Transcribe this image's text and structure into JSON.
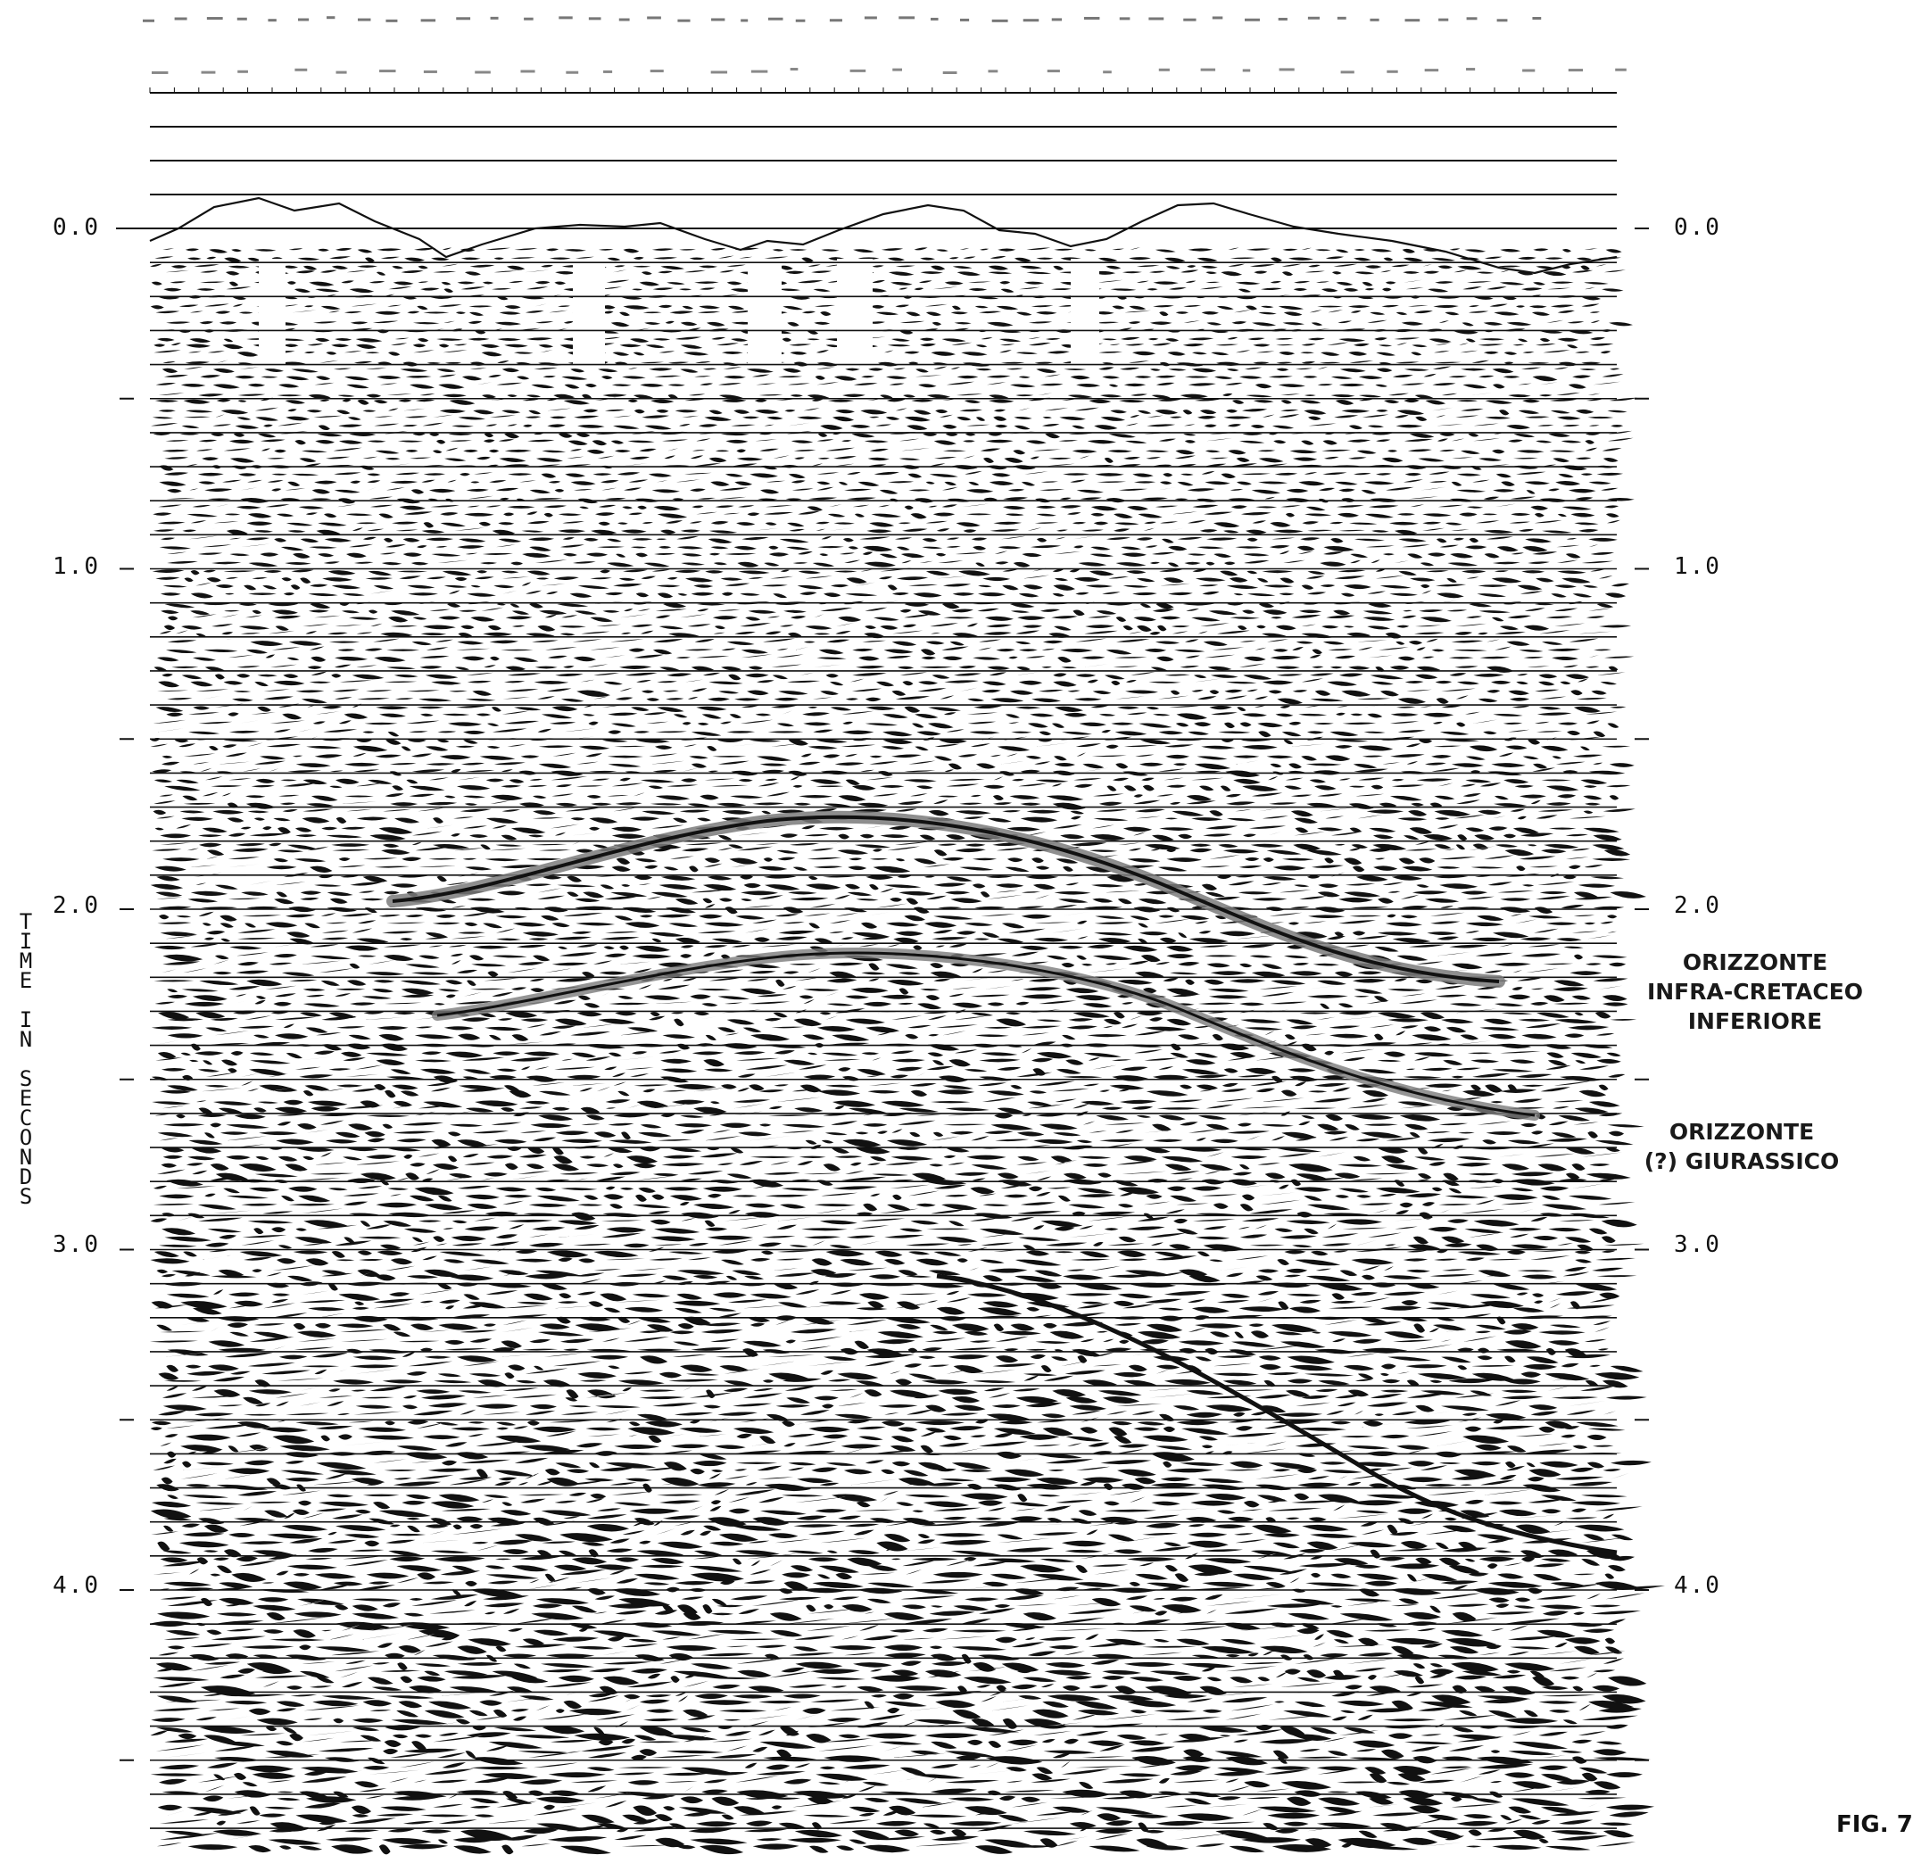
{
  "axis": {
    "title_letters": [
      "T",
      "I",
      "M",
      "E",
      "",
      "I",
      "N",
      "",
      "S",
      "E",
      "C",
      "O",
      "N",
      "D",
      "S"
    ],
    "ticks": [
      {
        "value": 0.0,
        "label": "0.0"
      },
      {
        "value": 0.5,
        "label": "-"
      },
      {
        "value": 1.0,
        "label": "1.0"
      },
      {
        "value": 1.5,
        "label": "-"
      },
      {
        "value": 2.0,
        "label": "2.0"
      },
      {
        "value": 2.5,
        "label": "-"
      },
      {
        "value": 3.0,
        "label": "3.0"
      },
      {
        "value": 3.5,
        "label": "-"
      },
      {
        "value": 4.0,
        "label": "4.0"
      },
      {
        "value": 4.5,
        "label": "-"
      }
    ],
    "ticks_left": [
      "0.0",
      "1.0",
      "2.0",
      "3.0",
      "4.0"
    ],
    "ticks_right": [
      "0.0",
      "1.0",
      "2.0",
      "3.0",
      "4.0"
    ],
    "range_seconds": [
      0.0,
      4.8
    ]
  },
  "annotations": {
    "horizon_1": [
      "ORIZZONTE",
      "INFRA-CRETACEO",
      "INFERIORE"
    ],
    "horizon_2": [
      "ORIZZONTE",
      "(?) GIURASSICO"
    ]
  },
  "figure_label": "FIG. 7",
  "colors": {
    "ink": "#111111",
    "horizon_highlight": "#7a7a7a",
    "paper": "#ffffff"
  }
}
